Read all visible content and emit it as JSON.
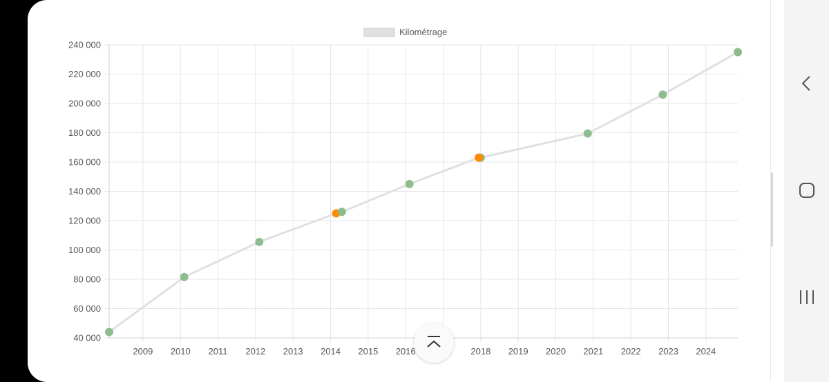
{
  "chart_data": {
    "type": "line",
    "legend": {
      "label": "Kilométrage",
      "position": "top-center",
      "line_color": "#e0e0e0"
    },
    "x_ticks": [
      "2009",
      "2010",
      "2011",
      "2012",
      "2013",
      "2014",
      "2015",
      "2016",
      "2017",
      "2018",
      "2019",
      "2020",
      "2021",
      "2022",
      "2023",
      "2024"
    ],
    "y_ticks": [
      "40 000",
      "60 000",
      "80 000",
      "100 000",
      "120 000",
      "140 000",
      "160 000",
      "180 000",
      "200 000",
      "220 000",
      "240 000"
    ],
    "xlim": [
      2008.1,
      2024.85
    ],
    "ylim": [
      40000,
      240000
    ],
    "grid": true,
    "series": [
      {
        "name": "Kilométrage",
        "points": [
          {
            "x": 2008.1,
            "y": 44000,
            "color": "#8fbc8f"
          },
          {
            "x": 2010.1,
            "y": 81500,
            "color": "#8fbc8f"
          },
          {
            "x": 2012.1,
            "y": 105500,
            "color": "#8fbc8f"
          },
          {
            "x": 2014.15,
            "y": 125000,
            "color": "#ff8c00"
          },
          {
            "x": 2014.3,
            "y": 126000,
            "color": "#8fbc8f"
          },
          {
            "x": 2016.1,
            "y": 145000,
            "color": "#8fbc8f"
          },
          {
            "x": 2018.0,
            "y": 163000,
            "color": "#8fbc8f"
          },
          {
            "x": 2017.95,
            "y": 163000,
            "color": "#ff8c00"
          },
          {
            "x": 2020.85,
            "y": 179500,
            "color": "#8fbc8f"
          },
          {
            "x": 2022.85,
            "y": 206000,
            "color": "#8fbc8f"
          },
          {
            "x": 2024.85,
            "y": 235000,
            "color": "#8fbc8f"
          }
        ]
      }
    ]
  },
  "icons": {
    "scroll_top": "chevron-up-icon",
    "nav_back": "back-icon",
    "nav_home": "home-icon",
    "nav_recents": "recents-icon"
  }
}
